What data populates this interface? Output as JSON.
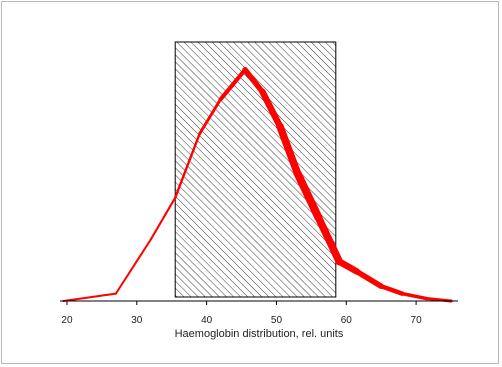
{
  "chart_data": {
    "type": "line",
    "title": "",
    "xlabel": "Haemoglobin distribution, rel. units",
    "ylabel": "",
    "xlim": [
      19,
      76
    ],
    "ylim": [
      0,
      100
    ],
    "x_ticks": [
      20,
      30,
      40,
      50,
      60,
      70
    ],
    "x_tick_labels": [
      "20",
      "30",
      "40",
      "50",
      "60",
      "70"
    ],
    "grid": false,
    "legend": "none",
    "shaded_region": {
      "x_start": 35.5,
      "x_end": 58.5,
      "pattern": "diagonal-hatch"
    },
    "series": [
      {
        "color": "#ff0000",
        "x": [
          19.5,
          27,
          32,
          35.5,
          39,
          42,
          45.5,
          48,
          50.5,
          53,
          56,
          59,
          61.5,
          65,
          68,
          71.5,
          75
        ],
        "y": [
          0,
          3,
          25,
          42,
          68,
          82,
          94,
          85,
          71,
          52,
          34,
          16,
          12,
          6,
          3,
          1,
          0
        ],
        "stroke_width": [
          2,
          2,
          2,
          2.2,
          2.5,
          3.2,
          5,
          6,
          7,
          8,
          8,
          7,
          6,
          5,
          4,
          3,
          3
        ]
      }
    ]
  }
}
